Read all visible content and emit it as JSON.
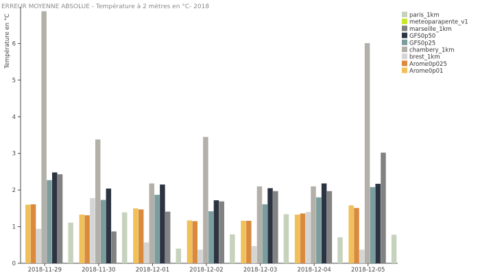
{
  "chart_data": {
    "type": "bar",
    "title": "ERREUR MOYENNE ABSOLUE - Température à 2 mètres en °C- 2018",
    "ylabel": "Température en °C",
    "xlabel": "",
    "ylim": [
      0,
      7
    ],
    "yticks": [
      0,
      1,
      2,
      3,
      4,
      5,
      6
    ],
    "categories": [
      "2018-11-29",
      "2018-11-30",
      "2018-12-01",
      "2018-12-02",
      "2018-12-03",
      "2018-12-04",
      "2018-12-05"
    ],
    "legend_position": "top-right",
    "grid": false,
    "legend_order": [
      "paris_1km",
      "meteoparapente_v1",
      "marseille_1km",
      "GFS0p50",
      "GFS0p25",
      "chambery_1km",
      "brest_1km",
      "Arome0p025",
      "Arome0p01"
    ],
    "series": [
      {
        "name": "Arome0p01",
        "color": "#f0c05a",
        "values": [
          1.6,
          1.33,
          1.5,
          1.17,
          1.16,
          1.33,
          1.58
        ]
      },
      {
        "name": "Arome0p025",
        "color": "#d98a3d",
        "values": [
          1.61,
          1.31,
          1.47,
          1.15,
          1.16,
          1.36,
          1.51
        ]
      },
      {
        "name": "brest_1km",
        "color": "#d5d5d5",
        "values": [
          0.94,
          1.78,
          0.57,
          0.37,
          0.47,
          1.4,
          0.37
        ]
      },
      {
        "name": "chambery_1km",
        "color": "#b3b0aa",
        "values": [
          6.88,
          3.38,
          2.18,
          3.45,
          2.1,
          2.1,
          6.01
        ]
      },
      {
        "name": "GFS0p25",
        "color": "#7b9d9e",
        "values": [
          2.27,
          1.73,
          1.87,
          1.42,
          1.61,
          1.8,
          2.08
        ]
      },
      {
        "name": "GFS0p50",
        "color": "#2c3442",
        "values": [
          2.48,
          2.04,
          2.15,
          1.72,
          2.05,
          2.18,
          2.17
        ]
      },
      {
        "name": "marseille_1km",
        "color": "#828282",
        "values": [
          2.43,
          0.87,
          1.41,
          1.69,
          1.97,
          1.97,
          3.02
        ]
      },
      {
        "name": "meteoparapente_v1",
        "color": "#c9e62a",
        "values": [
          null,
          null,
          null,
          null,
          null,
          null,
          null
        ]
      },
      {
        "name": "paris_1km",
        "color": "#c7d2bd",
        "values": [
          1.11,
          1.39,
          0.4,
          0.79,
          1.34,
          0.71,
          0.78
        ]
      }
    ]
  }
}
